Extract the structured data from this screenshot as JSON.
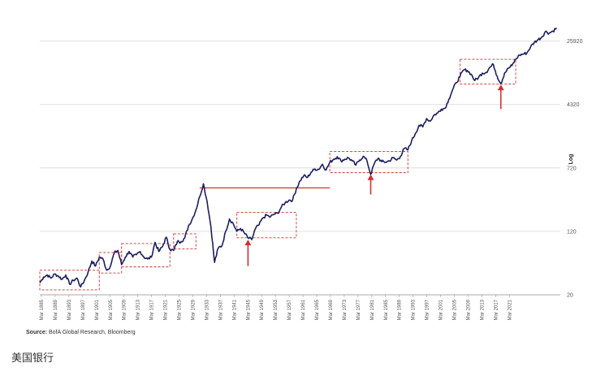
{
  "chart_data": {
    "type": "line",
    "title": "",
    "ylabel": "Log",
    "yscale": "log",
    "ylim": [
      20,
      50000
    ],
    "xlim": [
      1885,
      2025
    ],
    "y_ticks": [
      20,
      120,
      720,
      4320,
      25920
    ],
    "y_tick_labels": [
      "20",
      "120",
      "720",
      "4320",
      "25920"
    ],
    "x_tick_labels": [
      "Mar 1885",
      "Mar 1889",
      "Mar 1893",
      "Mar 1897",
      "Mar 1901",
      "Mar 1905",
      "Mar 1909",
      "Mar 1913",
      "Mar 1917",
      "Mar 1921",
      "Mar 1925",
      "Mar 1929",
      "Mar 1933",
      "Mar 1937",
      "Mar 1941",
      "Mar 1945",
      "Mar 1949",
      "Mar 1953",
      "Mar 1957",
      "Mar 1961",
      "Mar 1965",
      "Mar 1969",
      "Mar 1973",
      "Mar 1977",
      "Mar 1981",
      "Mar 1985",
      "Mar 1989",
      "Mar 1993",
      "Mar 1997",
      "Mar 2001",
      "Mar 2005",
      "Mar 2009",
      "Mar 2013",
      "Mar 2017",
      "Mar 2021"
    ],
    "grid": "horizontal",
    "series": [
      {
        "color": "#1c1f5e",
        "points": [
          [
            1885,
            28
          ],
          [
            1886,
            33
          ],
          [
            1887,
            35
          ],
          [
            1888,
            32
          ],
          [
            1889,
            36
          ],
          [
            1890,
            34
          ],
          [
            1891,
            31
          ],
          [
            1892,
            35
          ],
          [
            1893,
            27
          ],
          [
            1894,
            30
          ],
          [
            1895,
            32
          ],
          [
            1896,
            25
          ],
          [
            1897,
            30
          ],
          [
            1898,
            38
          ],
          [
            1899,
            52
          ],
          [
            1900,
            45
          ],
          [
            1901,
            58
          ],
          [
            1902,
            55
          ],
          [
            1903,
            40
          ],
          [
            1904,
            45
          ],
          [
            1905,
            65
          ],
          [
            1906,
            70
          ],
          [
            1907,
            47
          ],
          [
            1908,
            58
          ],
          [
            1909,
            68
          ],
          [
            1910,
            58
          ],
          [
            1911,
            62
          ],
          [
            1912,
            68
          ],
          [
            1913,
            58
          ],
          [
            1914,
            55
          ],
          [
            1915,
            58
          ],
          [
            1916,
            88
          ],
          [
            1917,
            68
          ],
          [
            1918,
            78
          ],
          [
            1919,
            102
          ],
          [
            1920,
            72
          ],
          [
            1921,
            70
          ],
          [
            1922,
            90
          ],
          [
            1923,
            90
          ],
          [
            1924,
            100
          ],
          [
            1925,
            140
          ],
          [
            1926,
            170
          ],
          [
            1927,
            220
          ],
          [
            1928,
            320
          ],
          [
            1929,
            460
          ],
          [
            1930,
            280
          ],
          [
            1931,
            140
          ],
          [
            1932,
            50
          ],
          [
            1933,
            75
          ],
          [
            1934,
            80
          ],
          [
            1935,
            120
          ],
          [
            1936,
            170
          ],
          [
            1937,
            150
          ],
          [
            1938,
            120
          ],
          [
            1939,
            130
          ],
          [
            1940,
            115
          ],
          [
            1941,
            100
          ],
          [
            1942,
            95
          ],
          [
            1943,
            130
          ],
          [
            1944,
            145
          ],
          [
            1945,
            175
          ],
          [
            1946,
            190
          ],
          [
            1947,
            180
          ],
          [
            1948,
            195
          ],
          [
            1949,
            200
          ],
          [
            1950,
            240
          ],
          [
            1951,
            270
          ],
          [
            1952,
            290
          ],
          [
            1953,
            290
          ],
          [
            1954,
            400
          ],
          [
            1955,
            500
          ],
          [
            1956,
            580
          ],
          [
            1957,
            550
          ],
          [
            1958,
            640
          ],
          [
            1959,
            700
          ],
          [
            1960,
            690
          ],
          [
            1961,
            800
          ],
          [
            1962,
            680
          ],
          [
            1963,
            840
          ],
          [
            1964,
            920
          ],
          [
            1965,
            990
          ],
          [
            1966,
            880
          ],
          [
            1967,
            920
          ],
          [
            1968,
            960
          ],
          [
            1969,
            880
          ],
          [
            1970,
            780
          ],
          [
            1971,
            900
          ],
          [
            1972,
            1000
          ],
          [
            1973,
            880
          ],
          [
            1974,
            600
          ],
          [
            1975,
            820
          ],
          [
            1976,
            950
          ],
          [
            1977,
            860
          ],
          [
            1978,
            850
          ],
          [
            1979,
            880
          ],
          [
            1980,
            960
          ],
          [
            1981,
            900
          ],
          [
            1982,
            1000
          ],
          [
            1983,
            1250
          ],
          [
            1984,
            1200
          ],
          [
            1985,
            1550
          ],
          [
            1986,
            1900
          ],
          [
            1987,
            2400
          ],
          [
            1988,
            2300
          ],
          [
            1989,
            2900
          ],
          [
            1990,
            2700
          ],
          [
            1991,
            3200
          ],
          [
            1992,
            3400
          ],
          [
            1993,
            3800
          ],
          [
            1994,
            3900
          ],
          [
            1995,
            5000
          ],
          [
            1996,
            6500
          ],
          [
            1997,
            8000
          ],
          [
            1998,
            9500
          ],
          [
            1999,
            11500
          ],
          [
            2000,
            11300
          ],
          [
            2001,
            10200
          ],
          [
            2002,
            8500
          ],
          [
            2003,
            9300
          ],
          [
            2004,
            10500
          ],
          [
            2005,
            10700
          ],
          [
            2006,
            12300
          ],
          [
            2007,
            13400
          ],
          [
            2008,
            9600
          ],
          [
            2009,
            7800
          ],
          [
            2010,
            10500
          ],
          [
            2011,
            12000
          ],
          [
            2012,
            13000
          ],
          [
            2013,
            15500
          ],
          [
            2014,
            17500
          ],
          [
            2015,
            18000
          ],
          [
            2016,
            18500
          ],
          [
            2017,
            22000
          ],
          [
            2018,
            25000
          ],
          [
            2019,
            27000
          ],
          [
            2020,
            29000
          ],
          [
            2021,
            34000
          ],
          [
            2022,
            32500
          ],
          [
            2023,
            34500
          ],
          [
            2024,
            37500
          ]
        ]
      }
    ],
    "annotations": {
      "dashed_boxes": [
        {
          "x0": 1885,
          "x1": 1901,
          "y0": 23,
          "y1": 40
        },
        {
          "x0": 1901,
          "x1": 1907,
          "y0": 37,
          "y1": 66
        },
        {
          "x0": 1907,
          "x1": 1920,
          "y0": 44,
          "y1": 85
        },
        {
          "x0": 1921,
          "x1": 1927,
          "y0": 73,
          "y1": 112
        },
        {
          "x0": 1938,
          "x1": 1954,
          "y0": 100,
          "y1": 205
        },
        {
          "x0": 1963,
          "x1": 1984,
          "y0": 630,
          "y1": 1150
        },
        {
          "x0": 1998,
          "x1": 2013,
          "y0": 7700,
          "y1": 15500
        }
      ],
      "arrows": [
        {
          "x": 1941,
          "y_from": 45,
          "y_to": 95
        },
        {
          "x": 1974,
          "y_from": 340,
          "y_to": 600
        },
        {
          "x": 2009,
          "y_from": 3800,
          "y_to": 7600
        }
      ],
      "resistance_line": {
        "x0": 1928,
        "x1": 1963,
        "y": 410
      }
    }
  },
  "source": {
    "label": "Source:",
    "text": " BofA Global Research, Bloomberg"
  },
  "caption": "美国银行"
}
